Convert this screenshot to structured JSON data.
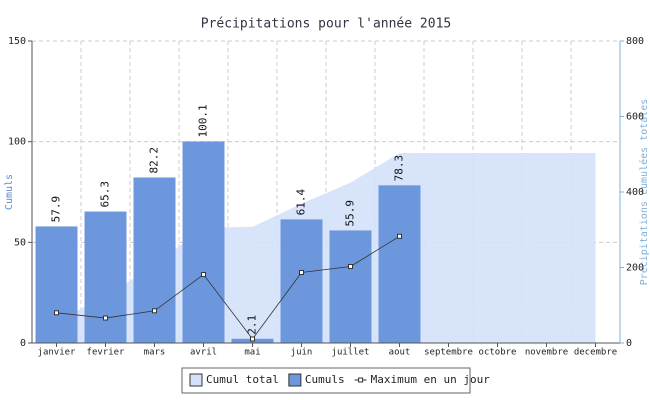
{
  "chart_data": {
    "type": "bar",
    "title": "Précipitations pour l'année 2015",
    "y_label": "Cumuls",
    "y2_label": "Précipitations cumulées totales",
    "categories": [
      "janvier",
      "fevrier",
      "mars",
      "avril",
      "mai",
      "juin",
      "juillet",
      "aout",
      "septembre",
      "octobre",
      "novembre",
      "decembre"
    ],
    "series": [
      {
        "name": "Cumul total",
        "type": "area",
        "axis": "y2",
        "color": "#d3e1f9",
        "values": [
          57.9,
          123.2,
          205.4,
          305.5,
          307.6,
          369.0,
          424.9,
          503.2,
          503.2,
          503.2,
          503.2,
          503.2
        ]
      },
      {
        "name": "Cumuls",
        "type": "bar",
        "color": "#6d97dd",
        "values": [
          57.9,
          65.3,
          82.2,
          100.1,
          2.1,
          61.4,
          55.9,
          78.3,
          null,
          null,
          null,
          null
        ]
      },
      {
        "name": "Maximum en un jour",
        "type": "line",
        "color": "#333333",
        "values": [
          15,
          12.4,
          16,
          34,
          2,
          35,
          38,
          53,
          null,
          null,
          null,
          null
        ]
      }
    ],
    "ylim": [
      0,
      150
    ],
    "yticks": [
      0,
      50,
      100,
      150
    ],
    "y2lim": [
      0,
      800
    ],
    "y2ticks": [
      0,
      200,
      400,
      600,
      800
    ],
    "grid": true,
    "legend": "bottom"
  }
}
